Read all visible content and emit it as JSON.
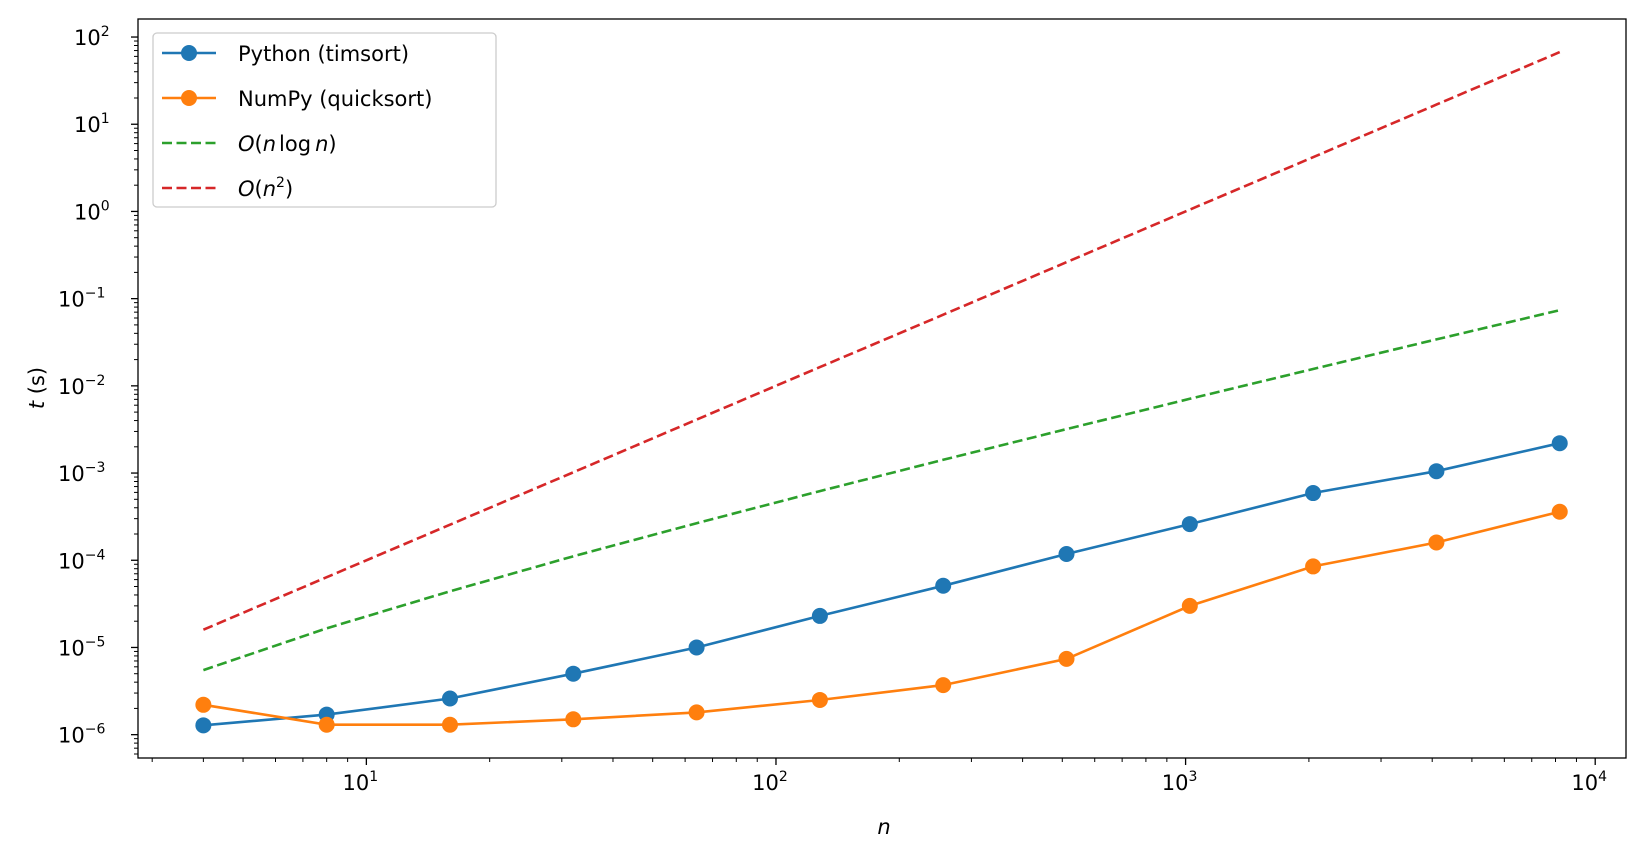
{
  "chart_data": {
    "type": "line",
    "title": "",
    "xlabel": "n",
    "ylabel": "t (s)",
    "xscale": "log",
    "yscale": "log",
    "xlim": [
      2.77,
      11890
    ],
    "ylim": [
      5.4e-07,
      161
    ],
    "grid": false,
    "legend_placement": "top-left",
    "x_ticks": [
      {
        "value": 10,
        "base": "10",
        "exp": "1"
      },
      {
        "value": 100,
        "base": "10",
        "exp": "2"
      },
      {
        "value": 1000,
        "base": "10",
        "exp": "3"
      },
      {
        "value": 10000,
        "base": "10",
        "exp": "4"
      }
    ],
    "y_ticks": [
      {
        "value": 100.0,
        "base": "10",
        "exp": "2"
      },
      {
        "value": 10.0,
        "base": "10",
        "exp": "1"
      },
      {
        "value": 1.0,
        "base": "10",
        "exp": "0"
      },
      {
        "value": 0.1,
        "base": "10",
        "exp": "−1"
      },
      {
        "value": 0.01,
        "base": "10",
        "exp": "−2"
      },
      {
        "value": 0.001,
        "base": "10",
        "exp": "−3"
      },
      {
        "value": 0.0001,
        "base": "10",
        "exp": "−4"
      },
      {
        "value": 1e-05,
        "base": "10",
        "exp": "−5"
      },
      {
        "value": 1e-06,
        "base": "10",
        "exp": "−6"
      }
    ],
    "x": [
      4,
      8,
      16,
      32,
      64,
      128,
      256,
      512,
      1024,
      2048,
      4096,
      8192
    ],
    "series": [
      {
        "name": "Python (timsort)",
        "color": "#1f77b4",
        "style": "solid-marker",
        "values": [
          1.28e-06,
          1.7e-06,
          2.6e-06,
          5e-06,
          1e-05,
          2.3e-05,
          5.1e-05,
          0.000118,
          0.00026,
          0.00059,
          0.00105,
          0.0022
        ]
      },
      {
        "name": "NumPy (quicksort)",
        "color": "#ff7f0e",
        "style": "solid-marker",
        "values": [
          2.2e-06,
          1.3e-06,
          1.3e-06,
          1.5e-06,
          1.8e-06,
          2.5e-06,
          3.7e-06,
          7.4e-06,
          3e-05,
          8.5e-05,
          0.00016,
          0.00036
        ]
      },
      {
        "name": "O(n log n)",
        "label_parts": [
          "O(",
          "n",
          "log",
          "n",
          ")"
        ],
        "color": "#2ca02c",
        "style": "dashed",
        "values": [
          5.5e-06,
          1.66e-05,
          4.4e-05,
          0.000111,
          0.000266,
          0.000621,
          0.00142,
          0.00319,
          0.0071,
          0.0156,
          0.0341,
          0.0738
        ]
      },
      {
        "name": "O(n^2)",
        "label_parts": [
          "O(",
          "n",
          "2",
          ")"
        ],
        "color": "#d62728",
        "style": "dashed",
        "values": [
          1.6e-05,
          6.4e-05,
          0.000256,
          0.00102,
          0.0041,
          0.0164,
          0.0655,
          0.262,
          1.05,
          4.19,
          16.8,
          67.1
        ]
      }
    ]
  }
}
